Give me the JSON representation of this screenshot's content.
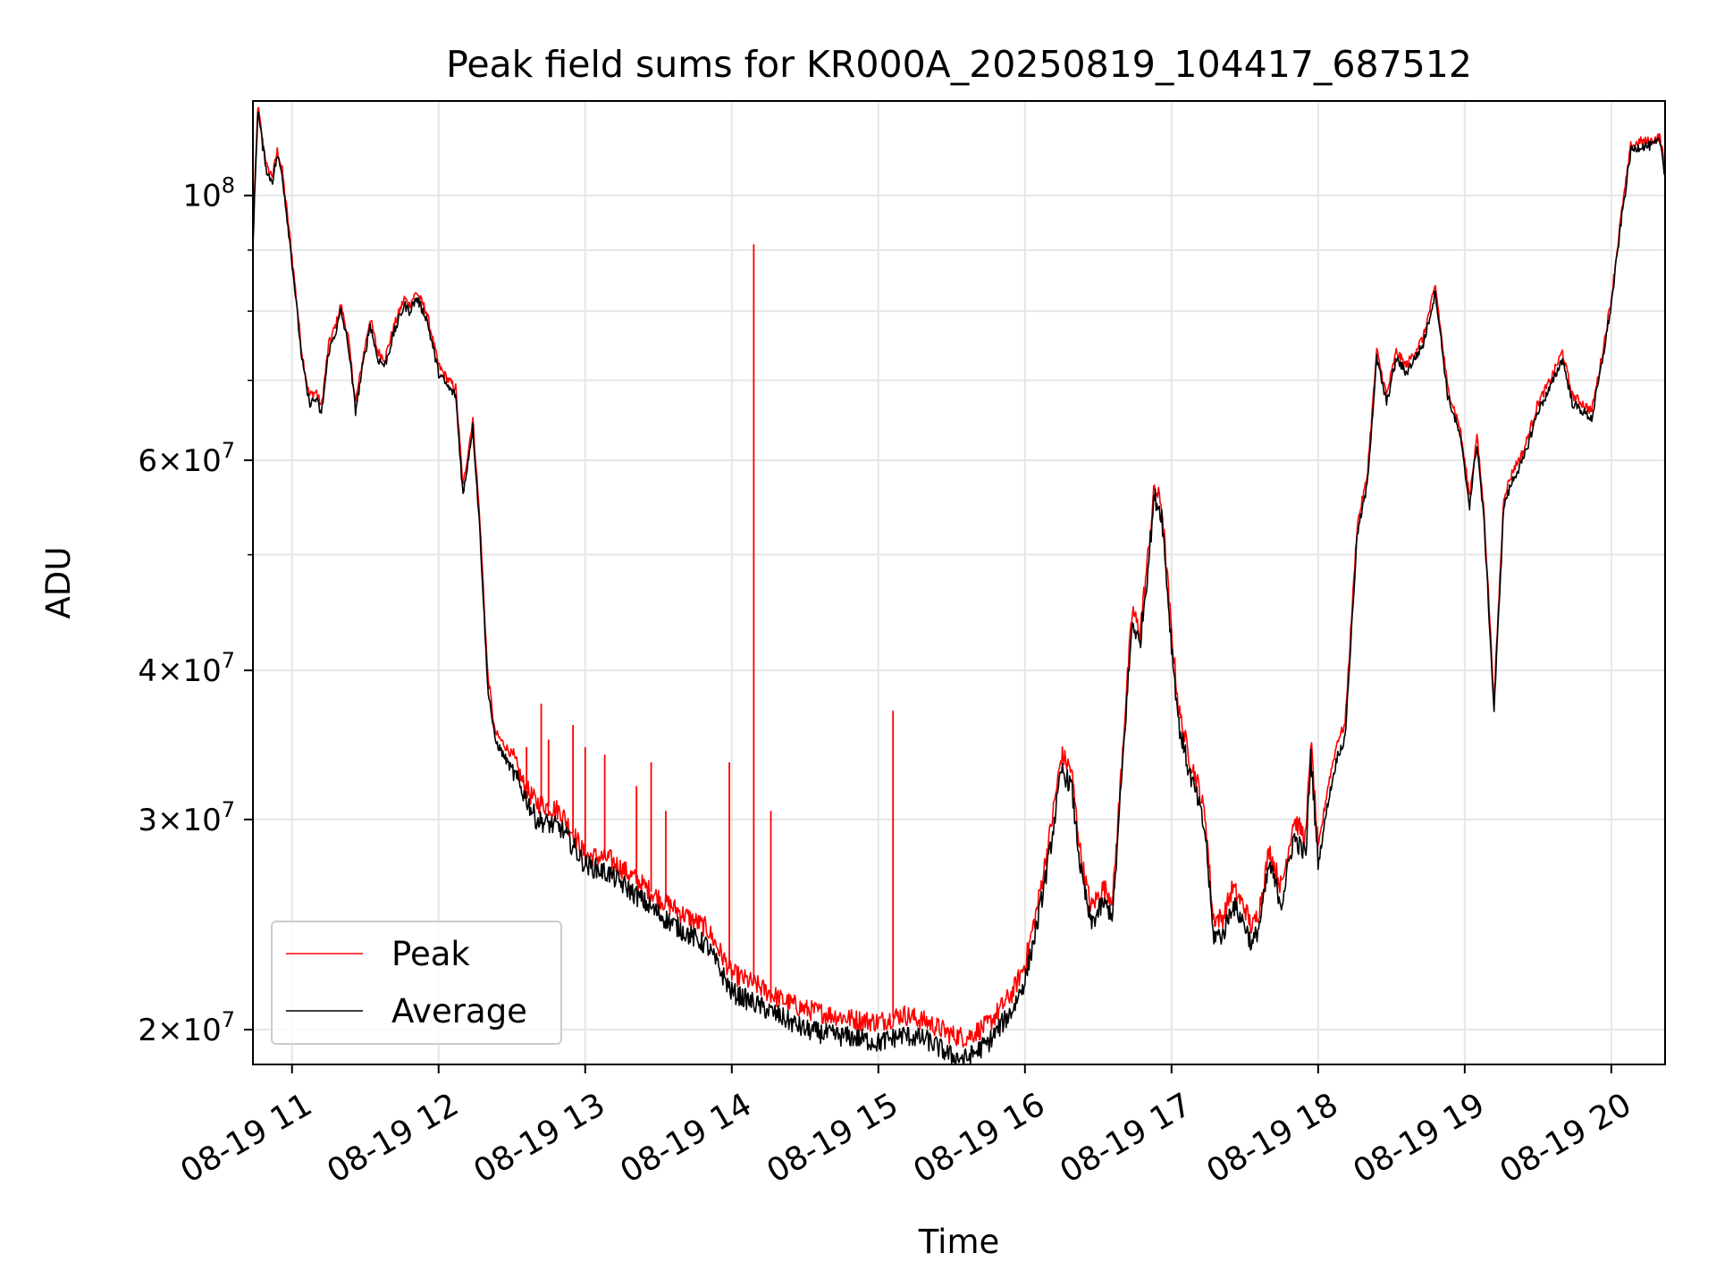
{
  "chart_data": {
    "type": "line",
    "title": "Peak field sums for KR000A_20250819_104417_687512",
    "xlabel": "Time",
    "ylabel": "ADU",
    "x_unit": "time of day (2025-08-19)",
    "y_scale": "log",
    "xlim": [
      "10:44",
      "20:22"
    ],
    "ylim": [
      18700000,
      120000000
    ],
    "grid": true,
    "legend_position": "lower left",
    "x_ticks": [
      {
        "t": "11:00",
        "label": "08-19 11"
      },
      {
        "t": "12:00",
        "label": "08-19 12"
      },
      {
        "t": "13:00",
        "label": "08-19 13"
      },
      {
        "t": "14:00",
        "label": "08-19 14"
      },
      {
        "t": "15:00",
        "label": "08-19 15"
      },
      {
        "t": "16:00",
        "label": "08-19 16"
      },
      {
        "t": "17:00",
        "label": "08-19 17"
      },
      {
        "t": "18:00",
        "label": "08-19 18"
      },
      {
        "t": "19:00",
        "label": "08-19 19"
      },
      {
        "t": "20:00",
        "label": "08-19 20"
      }
    ],
    "y_ticks": [
      {
        "value": 20000000,
        "base": "2",
        "exp": "7"
      },
      {
        "value": 30000000,
        "base": "3",
        "exp": "7"
      },
      {
        "value": 40000000,
        "base": "4",
        "exp": "7"
      },
      {
        "value": 60000000,
        "base": "6",
        "exp": "7"
      },
      {
        "value": 100000000,
        "base": "",
        "exp": "8"
      }
    ],
    "series": [
      {
        "name": "Average",
        "color": "#000000",
        "points": [
          [
            "10:44",
            91000000
          ],
          [
            "10:46",
            118000000
          ],
          [
            "10:48",
            110000000
          ],
          [
            "10:50",
            104000000
          ],
          [
            "10:52",
            103000000
          ],
          [
            "10:54",
            108000000
          ],
          [
            "10:56",
            104000000
          ],
          [
            "11:00",
            88000000
          ],
          [
            "11:04",
            73000000
          ],
          [
            "11:07",
            67000000
          ],
          [
            "11:10",
            67500000
          ],
          [
            "11:12",
            65500000
          ],
          [
            "11:15",
            74000000
          ],
          [
            "11:18",
            77000000
          ],
          [
            "11:20",
            80000000
          ],
          [
            "11:23",
            75000000
          ],
          [
            "11:26",
            66000000
          ],
          [
            "11:29",
            72000000
          ],
          [
            "11:32",
            78000000
          ],
          [
            "11:35",
            73000000
          ],
          [
            "11:38",
            72000000
          ],
          [
            "11:42",
            77000000
          ],
          [
            "11:46",
            81000000
          ],
          [
            "11:48",
            80000000
          ],
          [
            "11:51",
            82000000
          ],
          [
            "11:55",
            79000000
          ],
          [
            "12:00",
            71000000
          ],
          [
            "12:04",
            69000000
          ],
          [
            "12:07",
            68000000
          ],
          [
            "12:10",
            56000000
          ],
          [
            "12:14",
            64000000
          ],
          [
            "12:17",
            52000000
          ],
          [
            "12:20",
            39000000
          ],
          [
            "12:23",
            35000000
          ],
          [
            "12:30",
            33000000
          ],
          [
            "12:35",
            31500000
          ],
          [
            "12:40",
            30000000
          ],
          [
            "12:50",
            29500000
          ],
          [
            "13:00",
            27500000
          ],
          [
            "13:10",
            27000000
          ],
          [
            "13:20",
            26000000
          ],
          [
            "13:30",
            25000000
          ],
          [
            "13:40",
            24200000
          ],
          [
            "13:50",
            23500000
          ],
          [
            "14:00",
            21500000
          ],
          [
            "14:10",
            21000000
          ],
          [
            "14:20",
            20500000
          ],
          [
            "14:30",
            20000000
          ],
          [
            "14:40",
            19800000
          ],
          [
            "14:50",
            19700000
          ],
          [
            "15:00",
            19500000
          ],
          [
            "15:10",
            19800000
          ],
          [
            "15:20",
            19600000
          ],
          [
            "15:30",
            19000000
          ],
          [
            "15:36",
            18900000
          ],
          [
            "15:45",
            19500000
          ],
          [
            "15:55",
            20800000
          ],
          [
            "16:00",
            22000000
          ],
          [
            "16:05",
            24500000
          ],
          [
            "16:10",
            28000000
          ],
          [
            "16:15",
            33000000
          ],
          [
            "16:19",
            32000000
          ],
          [
            "16:23",
            27000000
          ],
          [
            "16:27",
            24500000
          ],
          [
            "16:32",
            25500000
          ],
          [
            "16:36",
            25000000
          ],
          [
            "16:41",
            36000000
          ],
          [
            "16:44",
            44000000
          ],
          [
            "16:47",
            42000000
          ],
          [
            "16:50",
            48000000
          ],
          [
            "16:53",
            56000000
          ],
          [
            "16:56",
            54000000
          ],
          [
            "17:00",
            42000000
          ],
          [
            "17:03",
            36000000
          ],
          [
            "17:07",
            33000000
          ],
          [
            "17:11",
            31000000
          ],
          [
            "17:14",
            29000000
          ],
          [
            "17:17",
            24000000
          ],
          [
            "17:21",
            24000000
          ],
          [
            "17:25",
            25500000
          ],
          [
            "17:30",
            24500000
          ],
          [
            "17:33",
            23500000
          ],
          [
            "17:36",
            24500000
          ],
          [
            "17:40",
            27500000
          ],
          [
            "17:45",
            25500000
          ],
          [
            "17:50",
            29000000
          ],
          [
            "17:55",
            28000000
          ],
          [
            "17:57",
            34000000
          ],
          [
            "18:00",
            27500000
          ],
          [
            "18:04",
            31000000
          ],
          [
            "18:08",
            34000000
          ],
          [
            "18:11",
            35000000
          ],
          [
            "18:16",
            52000000
          ],
          [
            "18:20",
            57000000
          ],
          [
            "18:24",
            73000000
          ],
          [
            "18:28",
            67000000
          ],
          [
            "18:32",
            73000000
          ],
          [
            "18:36",
            71000000
          ],
          [
            "18:43",
            75000000
          ],
          [
            "18:48",
            83000000
          ],
          [
            "18:53",
            68000000
          ],
          [
            "18:58",
            63000000
          ],
          [
            "19:02",
            55000000
          ],
          [
            "19:05",
            62000000
          ],
          [
            "19:08",
            53000000
          ],
          [
            "19:12",
            37000000
          ],
          [
            "19:16",
            55000000
          ],
          [
            "19:20",
            58000000
          ],
          [
            "19:24",
            60000000
          ],
          [
            "19:30",
            66000000
          ],
          [
            "19:35",
            69000000
          ],
          [
            "19:40",
            73000000
          ],
          [
            "19:44",
            67000000
          ],
          [
            "19:48",
            66000000
          ],
          [
            "19:52",
            65000000
          ],
          [
            "19:56",
            72000000
          ],
          [
            "20:00",
            81000000
          ],
          [
            "20:04",
            95000000
          ],
          [
            "20:08",
            109000000
          ],
          [
            "20:12",
            110000000
          ],
          [
            "20:16",
            110000000
          ],
          [
            "20:20",
            111000000
          ],
          [
            "20:22",
            104000000
          ]
        ]
      },
      {
        "name": "Peak",
        "color": "#ff0000",
        "points": [
          [
            "10:44",
            92000000
          ],
          [
            "10:46",
            119000000
          ],
          [
            "10:48",
            111000000
          ],
          [
            "10:50",
            105000000
          ],
          [
            "10:52",
            104000000
          ],
          [
            "10:54",
            109000000
          ],
          [
            "10:56",
            105000000
          ],
          [
            "11:00",
            89000000
          ],
          [
            "11:04",
            74000000
          ],
          [
            "11:07",
            68000000
          ],
          [
            "11:10",
            68500000
          ],
          [
            "11:12",
            66500000
          ],
          [
            "11:15",
            75000000
          ],
          [
            "11:18",
            78000000
          ],
          [
            "11:20",
            81000000
          ],
          [
            "11:23",
            76000000
          ],
          [
            "11:26",
            67000000
          ],
          [
            "11:29",
            73000000
          ],
          [
            "11:32",
            79000000
          ],
          [
            "11:35",
            74000000
          ],
          [
            "11:38",
            73000000
          ],
          [
            "11:42",
            78000000
          ],
          [
            "11:46",
            82000000
          ],
          [
            "11:48",
            81000000
          ],
          [
            "11:51",
            83000000
          ],
          [
            "11:55",
            80000000
          ],
          [
            "12:00",
            72000000
          ],
          [
            "12:04",
            70000000
          ],
          [
            "12:07",
            69000000
          ],
          [
            "12:10",
            57000000
          ],
          [
            "12:14",
            65000000
          ],
          [
            "12:17",
            53000000
          ],
          [
            "12:20",
            40000000
          ],
          [
            "12:23",
            35500000
          ],
          [
            "12:30",
            34000000
          ],
          [
            "12:35",
            32000000
          ],
          [
            "12:40",
            31000000
          ],
          [
            "12:50",
            30500000
          ],
          [
            "13:00",
            28000000
          ],
          [
            "13:10",
            27800000
          ],
          [
            "13:20",
            26800000
          ],
          [
            "13:30",
            25800000
          ],
          [
            "13:40",
            25000000
          ],
          [
            "13:50",
            24300000
          ],
          [
            "14:00",
            22300000
          ],
          [
            "14:10",
            21800000
          ],
          [
            "14:20",
            21200000
          ],
          [
            "14:30",
            20800000
          ],
          [
            "14:40",
            20600000
          ],
          [
            "14:50",
            20400000
          ],
          [
            "15:00",
            20300000
          ],
          [
            "15:10",
            20600000
          ],
          [
            "15:20",
            20300000
          ],
          [
            "15:30",
            19800000
          ],
          [
            "15:36",
            19700000
          ],
          [
            "15:45",
            20200000
          ],
          [
            "15:55",
            21500000
          ],
          [
            "16:00",
            22700000
          ],
          [
            "16:05",
            25300000
          ],
          [
            "16:10",
            29000000
          ],
          [
            "16:15",
            34000000
          ],
          [
            "16:19",
            33000000
          ],
          [
            "16:23",
            27800000
          ],
          [
            "16:27",
            25300000
          ],
          [
            "16:32",
            26300000
          ],
          [
            "16:36",
            25800000
          ],
          [
            "16:41",
            37000000
          ],
          [
            "16:44",
            45000000
          ],
          [
            "16:47",
            43000000
          ],
          [
            "16:50",
            49000000
          ],
          [
            "16:53",
            57000000
          ],
          [
            "16:56",
            55000000
          ],
          [
            "17:00",
            43000000
          ],
          [
            "17:03",
            37000000
          ],
          [
            "17:07",
            34000000
          ],
          [
            "17:11",
            32000000
          ],
          [
            "17:14",
            30000000
          ],
          [
            "17:17",
            24800000
          ],
          [
            "17:21",
            24800000
          ],
          [
            "17:25",
            26300000
          ],
          [
            "17:30",
            25300000
          ],
          [
            "17:33",
            24300000
          ],
          [
            "17:36",
            25300000
          ],
          [
            "17:40",
            28300000
          ],
          [
            "17:45",
            26300000
          ],
          [
            "17:50",
            30000000
          ],
          [
            "17:55",
            29000000
          ],
          [
            "17:57",
            35000000
          ],
          [
            "18:00",
            28300000
          ],
          [
            "18:04",
            32000000
          ],
          [
            "18:08",
            35000000
          ],
          [
            "18:11",
            36000000
          ],
          [
            "18:16",
            53000000
          ],
          [
            "18:20",
            58000000
          ],
          [
            "18:24",
            74000000
          ],
          [
            "18:28",
            68000000
          ],
          [
            "18:32",
            74000000
          ],
          [
            "18:36",
            72000000
          ],
          [
            "18:43",
            76000000
          ],
          [
            "18:48",
            84000000
          ],
          [
            "18:53",
            69000000
          ],
          [
            "18:58",
            64000000
          ],
          [
            "19:02",
            56000000
          ],
          [
            "19:05",
            63000000
          ],
          [
            "19:08",
            54000000
          ],
          [
            "19:12",
            37800000
          ],
          [
            "19:16",
            56000000
          ],
          [
            "19:20",
            59000000
          ],
          [
            "19:24",
            61000000
          ],
          [
            "19:30",
            67000000
          ],
          [
            "19:35",
            70000000
          ],
          [
            "19:40",
            74000000
          ],
          [
            "19:44",
            68000000
          ],
          [
            "19:48",
            67000000
          ],
          [
            "19:52",
            66000000
          ],
          [
            "19:56",
            73000000
          ],
          [
            "20:00",
            82000000
          ],
          [
            "20:04",
            96000000
          ],
          [
            "20:08",
            110000000
          ],
          [
            "20:12",
            111000000
          ],
          [
            "20:16",
            111000000
          ],
          [
            "20:20",
            112000000
          ],
          [
            "20:22",
            105000000
          ]
        ],
        "spikes": [
          [
            "12:36",
            34500000
          ],
          [
            "12:42",
            37500000
          ],
          [
            "12:45",
            35000000
          ],
          [
            "12:55",
            36000000
          ],
          [
            "13:00",
            34500000
          ],
          [
            "13:08",
            34000000
          ],
          [
            "13:21",
            32000000
          ],
          [
            "13:27",
            33500000
          ],
          [
            "13:33",
            30500000
          ],
          [
            "13:59",
            33500000
          ],
          [
            "14:09",
            91000000
          ],
          [
            "14:16",
            30500000
          ],
          [
            "15:06",
            37000000
          ]
        ]
      }
    ]
  }
}
